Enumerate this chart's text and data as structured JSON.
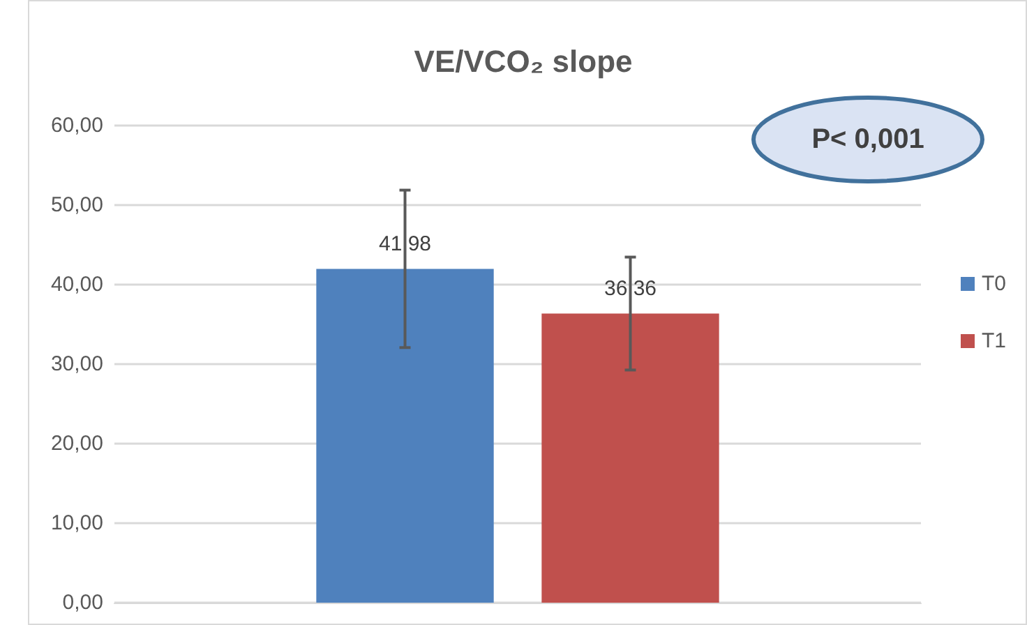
{
  "chart_data": {
    "type": "bar",
    "title": "VE/VCO₂ slope",
    "categories": [
      null
    ],
    "series": [
      {
        "name": "T0",
        "color": "#4f81bd",
        "values": [
          41.98
        ],
        "errors": [
          9.9
        ],
        "value_labels": [
          "41,98"
        ]
      },
      {
        "name": "T1",
        "color": "#c0504d",
        "values": [
          36.36
        ],
        "errors": [
          7.1
        ],
        "value_labels": [
          "36,36"
        ]
      }
    ],
    "ylim": [
      0,
      60
    ],
    "yticks": [
      {
        "value": 0,
        "label": "0,00"
      },
      {
        "value": 10,
        "label": "10,00"
      },
      {
        "value": 20,
        "label": "20,00"
      },
      {
        "value": 30,
        "label": "30,00"
      },
      {
        "value": 40,
        "label": "40,00"
      },
      {
        "value": 50,
        "label": "50,00"
      },
      {
        "value": 60,
        "label": "60,00"
      }
    ],
    "grid": "y",
    "legend": "right",
    "annotations": [
      "P< 0,001"
    ]
  }
}
